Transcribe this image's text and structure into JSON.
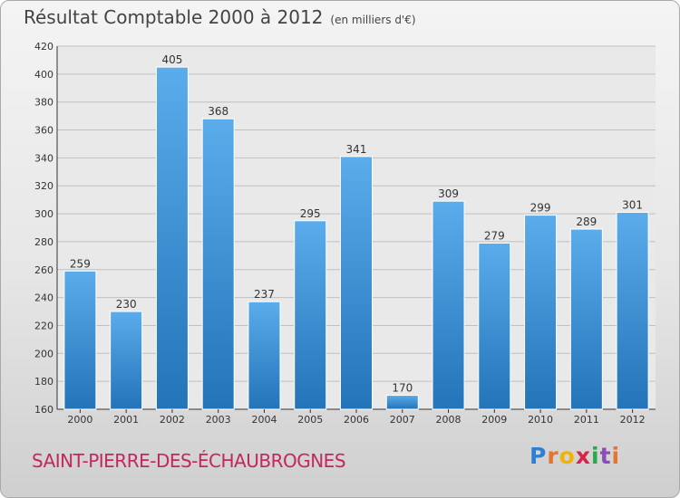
{
  "header": {
    "title": "Résultat Comptable 2000 à 2012",
    "subtitle": "(en milliers d'€)"
  },
  "footer": {
    "commune": "SAINT-PIERRE-DES-ÉCHAUBROGNES",
    "logo_text": "Proxiti"
  },
  "colors": {
    "bar_top": "#5aaceb",
    "bar_bottom": "#2374b8",
    "title": "#444444",
    "commune": "#c4265e",
    "grid": "#c0c0c0"
  },
  "chart_data": {
    "type": "bar",
    "title": "Résultat Comptable 2000 à 2012",
    "subtitle": "(en milliers d'€)",
    "xlabel": "",
    "ylabel": "",
    "categories": [
      "2000",
      "2001",
      "2002",
      "2003",
      "2004",
      "2005",
      "2006",
      "2007",
      "2008",
      "2009",
      "2010",
      "2011",
      "2012"
    ],
    "values": [
      259,
      230,
      405,
      368,
      237,
      295,
      341,
      170,
      309,
      279,
      299,
      289,
      301
    ],
    "ylim": [
      160,
      420
    ],
    "yticks": [
      160,
      180,
      200,
      220,
      240,
      260,
      280,
      300,
      320,
      340,
      360,
      380,
      400,
      420
    ],
    "grid": true,
    "legend": "none"
  }
}
